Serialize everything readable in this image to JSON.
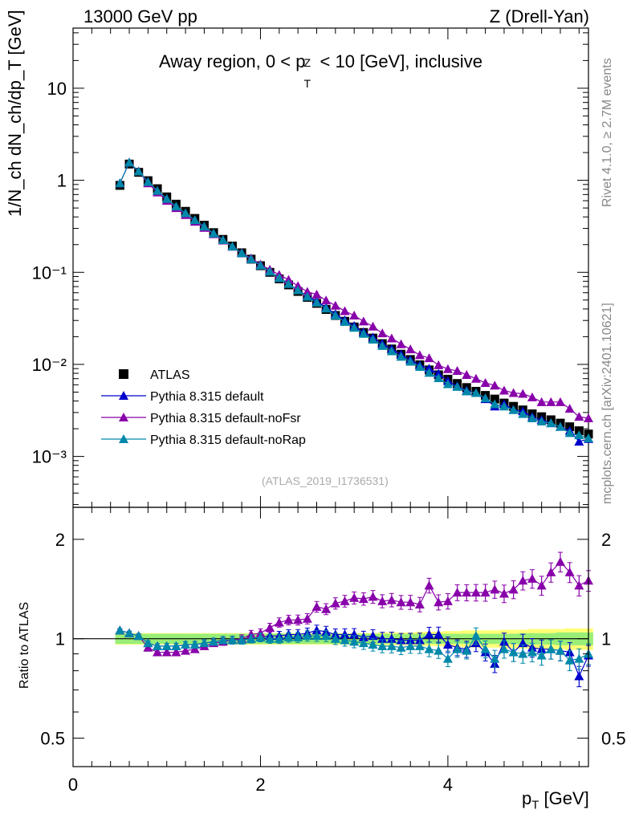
{
  "header": {
    "energy_label": "13000 GeV pp",
    "process_label": "Z (Drell-Yan)",
    "plot_title": "Away region, 0 < p_T^Z < 10 [GeV], inclusive",
    "plot_title_parts": {
      "pre": "Away region, 0 < p",
      "sub": "T",
      "sup": "Z",
      "post": " < 10 [GeV], inclusive"
    },
    "analysis_id": "(ATLAS_2019_I1736531)"
  },
  "sidebar": {
    "rivet_label": "Rivet 4.1.0, ≥ 2.7M events",
    "mcplots_label": "mcplots.cern.ch [arXiv:2401.10621]"
  },
  "axes": {
    "main_ylabel": "1/N_ch dN_ch/dp_T [GeV]",
    "ratio_ylabel": "Ratio to ATLAS",
    "xlabel": "p_T [GeV]",
    "xlabel_parts": {
      "pre": "p",
      "sub": "T",
      "post": " [GeV]"
    },
    "x_ticks": [
      "0",
      "2",
      "4"
    ],
    "main_y_ticks": [
      "10",
      "1",
      "10⁻¹",
      "10⁻²",
      "10⁻³"
    ],
    "ratio_y_ticks": [
      "2",
      "1",
      "0.5"
    ]
  },
  "colors": {
    "atlas": "#000000",
    "default": "#0000cc",
    "noFsr": "#8800aa",
    "noRap": "#0088aa",
    "band_inner": "#99ee77",
    "band_outer": "#ffff77"
  },
  "chart_data": [
    {
      "type": "scatter",
      "title": "Away region, 0 < p_T^Z < 10 [GeV], inclusive",
      "xlabel": "p_T [GeV]",
      "ylabel": "1/N_ch dN_ch/dp_T [GeV]",
      "xlim": [
        0,
        5.5
      ],
      "ylim": [
        0.00028,
        45
      ],
      "yscale": "log",
      "legend": "bottom-left",
      "x": [
        0.5,
        0.6,
        0.7,
        0.8,
        0.9,
        1.0,
        1.1,
        1.2,
        1.3,
        1.4,
        1.5,
        1.6,
        1.7,
        1.8,
        1.9,
        2.0,
        2.1,
        2.2,
        2.3,
        2.4,
        2.5,
        2.6,
        2.7,
        2.8,
        2.9,
        3.0,
        3.1,
        3.2,
        3.3,
        3.4,
        3.5,
        3.6,
        3.7,
        3.8,
        3.9,
        4.0,
        4.1,
        4.2,
        4.3,
        4.4,
        4.5,
        4.6,
        4.7,
        4.8,
        4.9,
        5.0,
        5.1,
        5.2,
        5.3,
        5.4,
        5.5
      ],
      "series": [
        {
          "name": "ATLAS",
          "values": [
            0.88,
            1.5,
            1.22,
            0.99,
            0.81,
            0.66,
            0.55,
            0.46,
            0.385,
            0.325,
            0.27,
            0.228,
            0.193,
            0.163,
            0.139,
            0.118,
            0.1,
            0.085,
            0.073,
            0.062,
            0.0535,
            0.046,
            0.0395,
            0.034,
            0.0294,
            0.0255,
            0.0222,
            0.0193,
            0.0168,
            0.0147,
            0.0129,
            0.0113,
            0.0099,
            0.0087,
            0.0077,
            0.0069,
            0.0062,
            0.0056,
            0.0051,
            0.0046,
            0.0042,
            0.0038,
            0.0035,
            0.0032,
            0.0029,
            0.0027,
            0.0025,
            0.0023,
            0.0021,
            0.0019,
            0.00175
          ]
        },
        {
          "name": "Pythia 8.315 default",
          "values": [
            0.93,
            1.56,
            1.25,
            0.96,
            0.77,
            0.63,
            0.52,
            0.44,
            0.37,
            0.315,
            0.265,
            0.225,
            0.191,
            0.162,
            0.139,
            0.119,
            0.102,
            0.087,
            0.075,
            0.064,
            0.0555,
            0.0485,
            0.0415,
            0.0352,
            0.0302,
            0.0262,
            0.0224,
            0.0196,
            0.0168,
            0.0147,
            0.0128,
            0.0112,
            0.0098,
            0.009,
            0.0079,
            0.0066,
            0.0058,
            0.0052,
            0.0049,
            0.0042,
            0.0035,
            0.0037,
            0.0032,
            0.0031,
            0.0027,
            0.0025,
            0.0023,
            0.0021,
            0.0019,
            0.00145,
            0.00155
          ]
        },
        {
          "name": "Pythia 8.315 default-noFsr",
          "values": [
            0.93,
            1.56,
            1.25,
            0.93,
            0.74,
            0.6,
            0.5,
            0.42,
            0.355,
            0.305,
            0.26,
            0.222,
            0.19,
            0.163,
            0.142,
            0.122,
            0.107,
            0.094,
            0.083,
            0.071,
            0.0615,
            0.0575,
            0.0495,
            0.0435,
            0.038,
            0.034,
            0.0293,
            0.0258,
            0.0218,
            0.0192,
            0.0166,
            0.0146,
            0.0126,
            0.0117,
            0.0098,
            0.0089,
            0.0085,
            0.0077,
            0.007,
            0.0063,
            0.0059,
            0.0052,
            0.0049,
            0.0048,
            0.0044,
            0.0039,
            0.0039,
            0.0039,
            0.0033,
            0.0027,
            0.0026
          ]
        },
        {
          "name": "Pythia 8.315 default-noRap",
          "values": [
            0.93,
            1.56,
            1.25,
            0.96,
            0.77,
            0.63,
            0.52,
            0.44,
            0.37,
            0.315,
            0.265,
            0.225,
            0.191,
            0.162,
            0.139,
            0.119,
            0.102,
            0.087,
            0.075,
            0.064,
            0.0545,
            0.047,
            0.0405,
            0.034,
            0.029,
            0.025,
            0.0215,
            0.0186,
            0.0159,
            0.0139,
            0.0121,
            0.0107,
            0.0094,
            0.0081,
            0.0071,
            0.0061,
            0.0057,
            0.0051,
            0.0049,
            0.0043,
            0.0037,
            0.0035,
            0.0032,
            0.0029,
            0.0026,
            0.0024,
            0.0023,
            0.0021,
            0.0018,
            0.0017,
            0.00158
          ]
        }
      ]
    },
    {
      "type": "scatter",
      "title": "",
      "xlabel": "p_T [GeV]",
      "ylabel": "Ratio to ATLAS",
      "xlim": [
        0,
        5.5
      ],
      "ylim": [
        0.41,
        2.5
      ],
      "yscale": "log",
      "reference_line": 1,
      "x": [
        0.5,
        0.6,
        0.7,
        0.8,
        0.9,
        1.0,
        1.1,
        1.2,
        1.3,
        1.4,
        1.5,
        1.6,
        1.7,
        1.8,
        1.9,
        2.0,
        2.1,
        2.2,
        2.3,
        2.4,
        2.5,
        2.6,
        2.7,
        2.8,
        2.9,
        3.0,
        3.1,
        3.2,
        3.3,
        3.4,
        3.5,
        3.6,
        3.7,
        3.8,
        3.9,
        4.0,
        4.1,
        4.2,
        4.3,
        4.4,
        4.5,
        4.6,
        4.7,
        4.8,
        4.9,
        5.0,
        5.1,
        5.2,
        5.3,
        5.4,
        5.5
      ],
      "series": [
        {
          "name": "Pythia 8.315 default",
          "values": [
            1.06,
            1.04,
            1.02,
            0.97,
            0.95,
            0.95,
            0.95,
            0.96,
            0.96,
            0.97,
            0.98,
            0.99,
            0.99,
            0.99,
            1.0,
            1.01,
            1.02,
            1.02,
            1.03,
            1.03,
            1.04,
            1.06,
            1.05,
            1.03,
            1.03,
            1.03,
            1.01,
            1.02,
            1.0,
            1.0,
            0.99,
            0.99,
            0.99,
            1.03,
            1.03,
            0.96,
            0.94,
            0.93,
            0.97,
            0.91,
            0.84,
            0.98,
            0.91,
            0.97,
            0.94,
            0.93,
            0.93,
            0.92,
            0.91,
            0.77,
            0.89
          ]
        },
        {
          "name": "Pythia 8.315 default-noFsr",
          "values": [
            1.06,
            1.04,
            1.02,
            0.94,
            0.91,
            0.91,
            0.91,
            0.92,
            0.93,
            0.95,
            0.97,
            0.98,
            0.99,
            1.0,
            1.03,
            1.04,
            1.08,
            1.12,
            1.14,
            1.14,
            1.15,
            1.25,
            1.23,
            1.28,
            1.3,
            1.33,
            1.32,
            1.34,
            1.3,
            1.31,
            1.29,
            1.29,
            1.27,
            1.45,
            1.29,
            1.3,
            1.38,
            1.38,
            1.38,
            1.38,
            1.41,
            1.37,
            1.41,
            1.5,
            1.52,
            1.45,
            1.59,
            1.71,
            1.59,
            1.45,
            1.5
          ]
        },
        {
          "name": "Pythia 8.315 default-noRap",
          "values": [
            1.06,
            1.04,
            1.02,
            0.97,
            0.95,
            0.95,
            0.95,
            0.96,
            0.96,
            0.97,
            0.98,
            0.99,
            0.99,
            0.99,
            1.0,
            1.01,
            1.0,
            1.0,
            1.01,
            1.01,
            1.02,
            1.02,
            1.02,
            1.0,
            0.99,
            0.98,
            0.97,
            0.96,
            0.95,
            0.95,
            0.94,
            0.95,
            0.95,
            0.93,
            0.92,
            0.87,
            0.93,
            0.92,
            1.02,
            0.93,
            0.87,
            0.93,
            0.91,
            0.9,
            0.91,
            0.89,
            0.93,
            0.92,
            0.86,
            0.87,
            0.9
          ]
        }
      ],
      "band": {
        "inner_halfwidth": [
          0.035,
          0.035,
          0.035,
          0.035,
          0.035,
          0.035,
          0.035,
          0.035,
          0.035,
          0.035,
          0.035,
          0.035,
          0.035,
          0.035,
          0.035,
          0.035,
          0.035,
          0.035,
          0.035,
          0.035,
          0.035,
          0.035,
          0.035,
          0.035,
          0.035,
          0.035,
          0.035,
          0.035,
          0.035,
          0.035,
          0.035,
          0.035,
          0.035,
          0.035,
          0.035,
          0.035,
          0.035,
          0.035,
          0.035,
          0.035,
          0.035,
          0.035,
          0.035,
          0.04,
          0.04,
          0.04,
          0.04,
          0.045,
          0.045,
          0.045,
          0.045
        ],
        "outer_halfwidth": [
          0.04,
          0.04,
          0.04,
          0.04,
          0.04,
          0.04,
          0.04,
          0.04,
          0.04,
          0.04,
          0.04,
          0.04,
          0.04,
          0.04,
          0.04,
          0.04,
          0.04,
          0.04,
          0.04,
          0.04,
          0.04,
          0.04,
          0.04,
          0.04,
          0.04,
          0.04,
          0.04,
          0.04,
          0.045,
          0.045,
          0.045,
          0.045,
          0.05,
          0.05,
          0.05,
          0.055,
          0.055,
          0.06,
          0.06,
          0.06,
          0.06,
          0.065,
          0.065,
          0.065,
          0.07,
          0.07,
          0.07,
          0.07,
          0.075,
          0.075,
          0.075
        ]
      }
    }
  ],
  "legend": {
    "items": [
      {
        "label": "ATLAS",
        "marker": "square",
        "color": "#000000"
      },
      {
        "label": "Pythia 8.315 default",
        "marker": "triangle",
        "color": "#0000cc"
      },
      {
        "label": "Pythia 8.315 default-noFsr",
        "marker": "triangle",
        "color": "#8800aa"
      },
      {
        "label": "Pythia 8.315 default-noRap",
        "marker": "triangle",
        "color": "#0088aa"
      }
    ]
  }
}
